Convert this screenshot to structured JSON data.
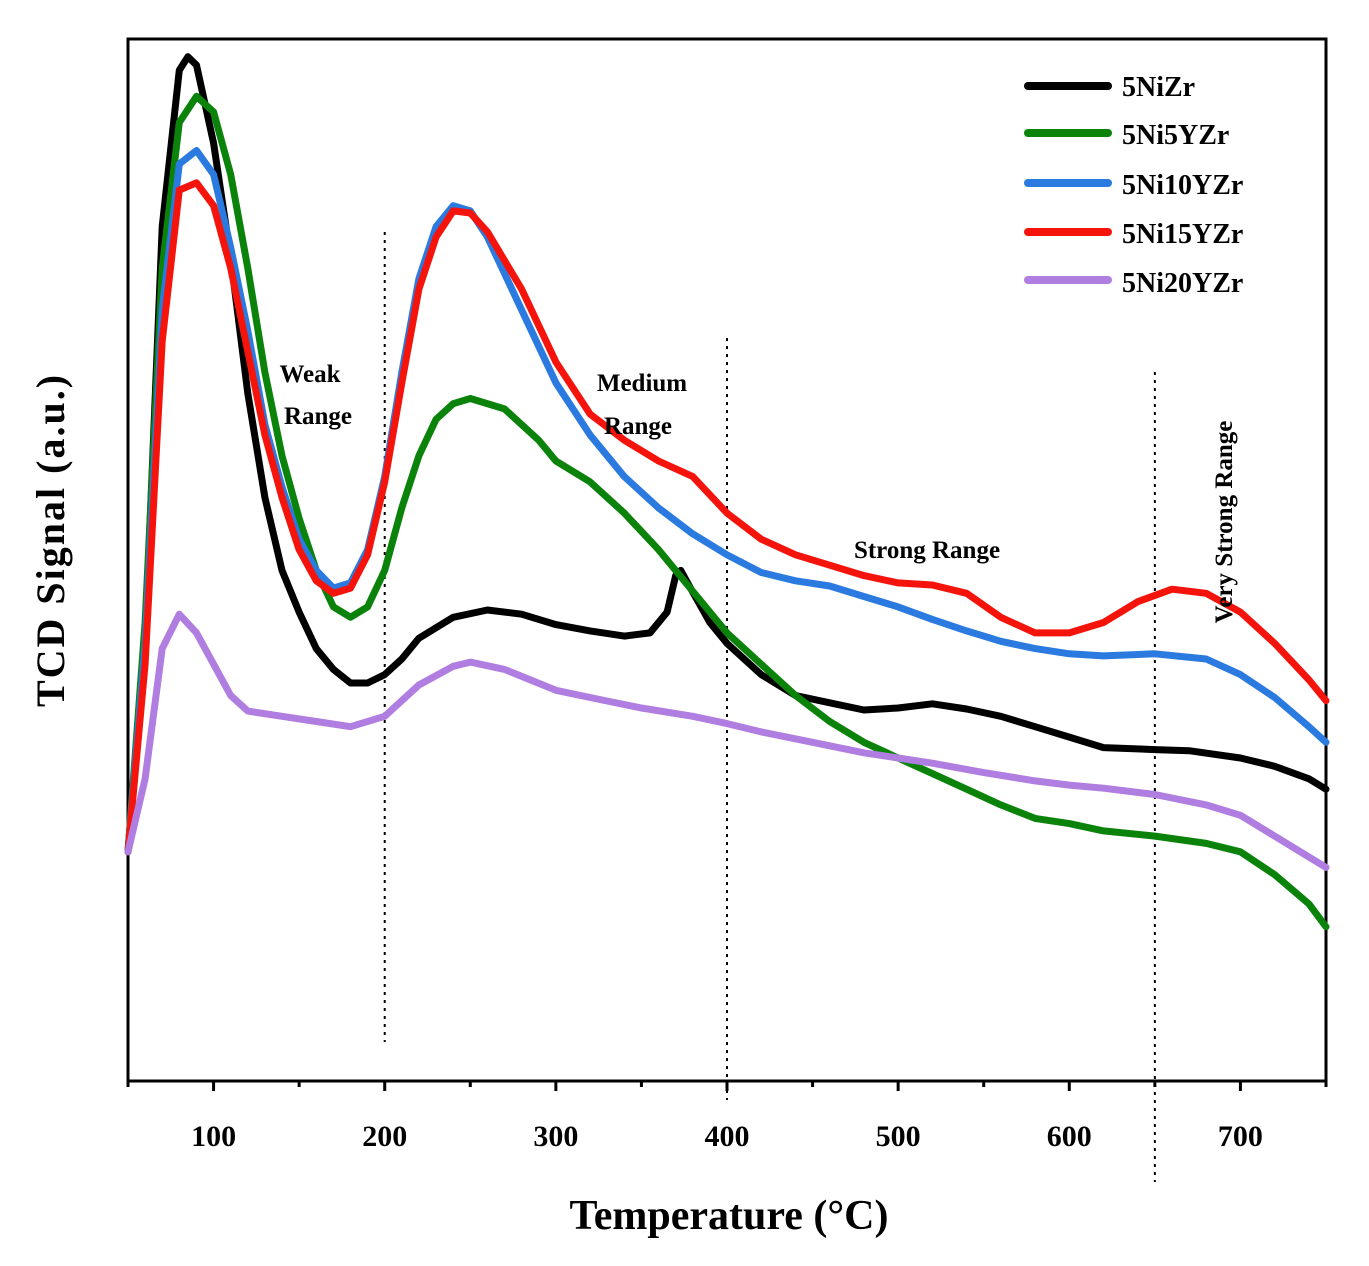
{
  "chart_data": {
    "type": "line",
    "title": "",
    "xlabel": "Temperature (°C)",
    "ylabel": "TCD Signal (a.u.)",
    "xlim": [
      50,
      750
    ],
    "ylim": [
      0,
      1
    ],
    "x_ticks": [
      100,
      200,
      300,
      400,
      500,
      600,
      700
    ],
    "y_ticks_shown": false,
    "legend_position": "top-right",
    "series": [
      {
        "name": "5NiZr",
        "color": "#000000",
        "points": [
          [
            50,
            0.22
          ],
          [
            60,
            0.42
          ],
          [
            70,
            0.82
          ],
          [
            80,
            0.97
          ],
          [
            85,
            0.983
          ],
          [
            90,
            0.975
          ],
          [
            100,
            0.9
          ],
          [
            110,
            0.79
          ],
          [
            120,
            0.66
          ],
          [
            130,
            0.56
          ],
          [
            140,
            0.49
          ],
          [
            150,
            0.45
          ],
          [
            160,
            0.415
          ],
          [
            170,
            0.395
          ],
          [
            180,
            0.382
          ],
          [
            190,
            0.382
          ],
          [
            200,
            0.39
          ],
          [
            210,
            0.405
          ],
          [
            220,
            0.425
          ],
          [
            240,
            0.445
          ],
          [
            260,
            0.452
          ],
          [
            280,
            0.448
          ],
          [
            300,
            0.438
          ],
          [
            320,
            0.432
          ],
          [
            340,
            0.427
          ],
          [
            355,
            0.43
          ],
          [
            365,
            0.45
          ],
          [
            370,
            0.485
          ],
          [
            373,
            0.49
          ],
          [
            378,
            0.475
          ],
          [
            390,
            0.44
          ],
          [
            400,
            0.42
          ],
          [
            420,
            0.39
          ],
          [
            440,
            0.37
          ],
          [
            460,
            0.363
          ],
          [
            480,
            0.356
          ],
          [
            500,
            0.358
          ],
          [
            520,
            0.362
          ],
          [
            540,
            0.357
          ],
          [
            560,
            0.35
          ],
          [
            580,
            0.34
          ],
          [
            600,
            0.33
          ],
          [
            620,
            0.32
          ],
          [
            650,
            0.318
          ],
          [
            670,
            0.317
          ],
          [
            700,
            0.31
          ],
          [
            720,
            0.302
          ],
          [
            740,
            0.29
          ],
          [
            750,
            0.28
          ]
        ]
      },
      {
        "name": "5Ni5YZr",
        "color": "#0b830b",
        "points": [
          [
            50,
            0.22
          ],
          [
            60,
            0.44
          ],
          [
            70,
            0.78
          ],
          [
            80,
            0.92
          ],
          [
            90,
            0.945
          ],
          [
            100,
            0.93
          ],
          [
            110,
            0.87
          ],
          [
            120,
            0.78
          ],
          [
            130,
            0.68
          ],
          [
            140,
            0.6
          ],
          [
            150,
            0.54
          ],
          [
            160,
            0.49
          ],
          [
            170,
            0.455
          ],
          [
            180,
            0.445
          ],
          [
            190,
            0.455
          ],
          [
            200,
            0.49
          ],
          [
            210,
            0.55
          ],
          [
            220,
            0.6
          ],
          [
            230,
            0.635
          ],
          [
            240,
            0.65
          ],
          [
            250,
            0.655
          ],
          [
            270,
            0.645
          ],
          [
            290,
            0.615
          ],
          [
            300,
            0.595
          ],
          [
            320,
            0.575
          ],
          [
            340,
            0.545
          ],
          [
            360,
            0.51
          ],
          [
            380,
            0.47
          ],
          [
            400,
            0.43
          ],
          [
            420,
            0.4
          ],
          [
            440,
            0.37
          ],
          [
            460,
            0.345
          ],
          [
            480,
            0.325
          ],
          [
            500,
            0.31
          ],
          [
            520,
            0.295
          ],
          [
            540,
            0.28
          ],
          [
            560,
            0.265
          ],
          [
            580,
            0.252
          ],
          [
            600,
            0.247
          ],
          [
            620,
            0.24
          ],
          [
            650,
            0.235
          ],
          [
            680,
            0.228
          ],
          [
            700,
            0.22
          ],
          [
            720,
            0.198
          ],
          [
            740,
            0.17
          ],
          [
            750,
            0.148
          ]
        ]
      },
      {
        "name": "5Ni10YZr",
        "color": "#2a7ae0",
        "points": [
          [
            50,
            0.22
          ],
          [
            60,
            0.42
          ],
          [
            70,
            0.74
          ],
          [
            80,
            0.88
          ],
          [
            90,
            0.893
          ],
          [
            100,
            0.87
          ],
          [
            110,
            0.8
          ],
          [
            120,
            0.72
          ],
          [
            130,
            0.63
          ],
          [
            140,
            0.57
          ],
          [
            150,
            0.52
          ],
          [
            160,
            0.49
          ],
          [
            170,
            0.473
          ],
          [
            180,
            0.478
          ],
          [
            190,
            0.51
          ],
          [
            200,
            0.58
          ],
          [
            210,
            0.68
          ],
          [
            220,
            0.77
          ],
          [
            230,
            0.82
          ],
          [
            240,
            0.84
          ],
          [
            250,
            0.835
          ],
          [
            260,
            0.81
          ],
          [
            280,
            0.74
          ],
          [
            300,
            0.67
          ],
          [
            320,
            0.62
          ],
          [
            340,
            0.58
          ],
          [
            360,
            0.55
          ],
          [
            380,
            0.525
          ],
          [
            400,
            0.505
          ],
          [
            420,
            0.488
          ],
          [
            440,
            0.48
          ],
          [
            460,
            0.475
          ],
          [
            480,
            0.465
          ],
          [
            500,
            0.455
          ],
          [
            520,
            0.443
          ],
          [
            540,
            0.432
          ],
          [
            560,
            0.422
          ],
          [
            580,
            0.415
          ],
          [
            600,
            0.41
          ],
          [
            620,
            0.408
          ],
          [
            650,
            0.41
          ],
          [
            680,
            0.405
          ],
          [
            700,
            0.39
          ],
          [
            720,
            0.368
          ],
          [
            740,
            0.34
          ],
          [
            750,
            0.325
          ]
        ]
      },
      {
        "name": "5Ni15YZr",
        "color": "#f5140c",
        "points": [
          [
            50,
            0.22
          ],
          [
            60,
            0.4
          ],
          [
            70,
            0.71
          ],
          [
            80,
            0.855
          ],
          [
            90,
            0.862
          ],
          [
            100,
            0.84
          ],
          [
            110,
            0.78
          ],
          [
            120,
            0.7
          ],
          [
            130,
            0.62
          ],
          [
            140,
            0.56
          ],
          [
            150,
            0.51
          ],
          [
            160,
            0.48
          ],
          [
            170,
            0.468
          ],
          [
            180,
            0.473
          ],
          [
            190,
            0.505
          ],
          [
            200,
            0.575
          ],
          [
            210,
            0.67
          ],
          [
            220,
            0.76
          ],
          [
            230,
            0.81
          ],
          [
            240,
            0.835
          ],
          [
            250,
            0.833
          ],
          [
            260,
            0.815
          ],
          [
            280,
            0.76
          ],
          [
            300,
            0.69
          ],
          [
            320,
            0.64
          ],
          [
            340,
            0.615
          ],
          [
            360,
            0.595
          ],
          [
            380,
            0.58
          ],
          [
            400,
            0.545
          ],
          [
            420,
            0.52
          ],
          [
            440,
            0.505
          ],
          [
            460,
            0.495
          ],
          [
            480,
            0.485
          ],
          [
            500,
            0.478
          ],
          [
            520,
            0.476
          ],
          [
            540,
            0.468
          ],
          [
            560,
            0.445
          ],
          [
            580,
            0.43
          ],
          [
            600,
            0.43
          ],
          [
            620,
            0.44
          ],
          [
            640,
            0.46
          ],
          [
            660,
            0.472
          ],
          [
            680,
            0.468
          ],
          [
            700,
            0.45
          ],
          [
            720,
            0.42
          ],
          [
            740,
            0.385
          ],
          [
            750,
            0.365
          ]
        ]
      },
      {
        "name": "5Ni20YZr",
        "color": "#b07ee0",
        "points": [
          [
            50,
            0.22
          ],
          [
            60,
            0.29
          ],
          [
            70,
            0.415
          ],
          [
            80,
            0.448
          ],
          [
            90,
            0.43
          ],
          [
            100,
            0.4
          ],
          [
            110,
            0.37
          ],
          [
            120,
            0.355
          ],
          [
            140,
            0.35
          ],
          [
            160,
            0.345
          ],
          [
            180,
            0.34
          ],
          [
            200,
            0.35
          ],
          [
            220,
            0.38
          ],
          [
            240,
            0.398
          ],
          [
            250,
            0.402
          ],
          [
            270,
            0.395
          ],
          [
            300,
            0.375
          ],
          [
            320,
            0.368
          ],
          [
            350,
            0.358
          ],
          [
            380,
            0.35
          ],
          [
            400,
            0.343
          ],
          [
            420,
            0.335
          ],
          [
            450,
            0.325
          ],
          [
            480,
            0.315
          ],
          [
            500,
            0.31
          ],
          [
            520,
            0.305
          ],
          [
            550,
            0.296
          ],
          [
            580,
            0.288
          ],
          [
            600,
            0.284
          ],
          [
            620,
            0.281
          ],
          [
            650,
            0.275
          ],
          [
            680,
            0.265
          ],
          [
            700,
            0.255
          ],
          [
            720,
            0.235
          ],
          [
            740,
            0.215
          ],
          [
            750,
            0.205
          ]
        ]
      }
    ],
    "regions": [
      {
        "label_lines": [
          "Weak",
          "Range"
        ],
        "boundary_x": 200
      },
      {
        "label_lines": [
          "Medium",
          "Range"
        ],
        "boundary_x": 400
      },
      {
        "label_lines": [
          "Strong Range"
        ],
        "boundary_x": 650
      },
      {
        "label_lines": [
          "Very Strong Range"
        ],
        "orientation": "vertical"
      }
    ]
  }
}
